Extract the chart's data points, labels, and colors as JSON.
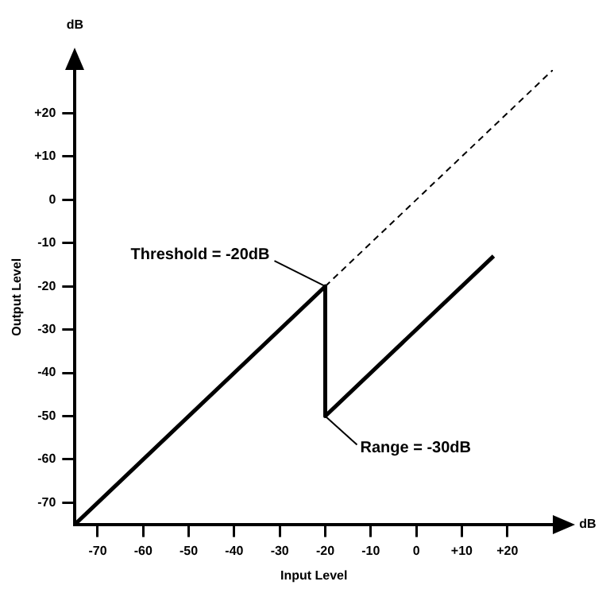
{
  "chart_data": {
    "type": "line",
    "xlabel": "Input Level",
    "ylabel": "Output Level",
    "xlim": [
      -75,
      30
    ],
    "ylim": [
      -75,
      30
    ],
    "xticks": [
      -70,
      -60,
      -50,
      -40,
      -30,
      -20,
      -10,
      0,
      {
        "value": 10,
        "label": "+10"
      },
      {
        "value": 20,
        "label": "+20"
      }
    ],
    "yticks": [
      -70,
      -60,
      -50,
      -40,
      -30,
      -20,
      -10,
      0,
      {
        "value": 10,
        "label": "+10"
      },
      {
        "value": 20,
        "label": "+20"
      }
    ],
    "marker": "none",
    "series": [
      {
        "color": "#000000",
        "x": [
          -75,
          -20,
          -20,
          17
        ],
        "values": [
          -75,
          -20,
          -50,
          -13
        ],
        "line_style": "solid"
      },
      {
        "color": "#000000",
        "x": [
          -20,
          30
        ],
        "values": [
          -20,
          30
        ],
        "line_style": "dashed"
      }
    ],
    "annotations": [
      {
        "text": "Threshold = -20dB",
        "x": -20,
        "y": -20
      },
      {
        "text": "Range = -30dB",
        "x": -20,
        "y": -50
      },
      "dB",
      "dB"
    ]
  }
}
